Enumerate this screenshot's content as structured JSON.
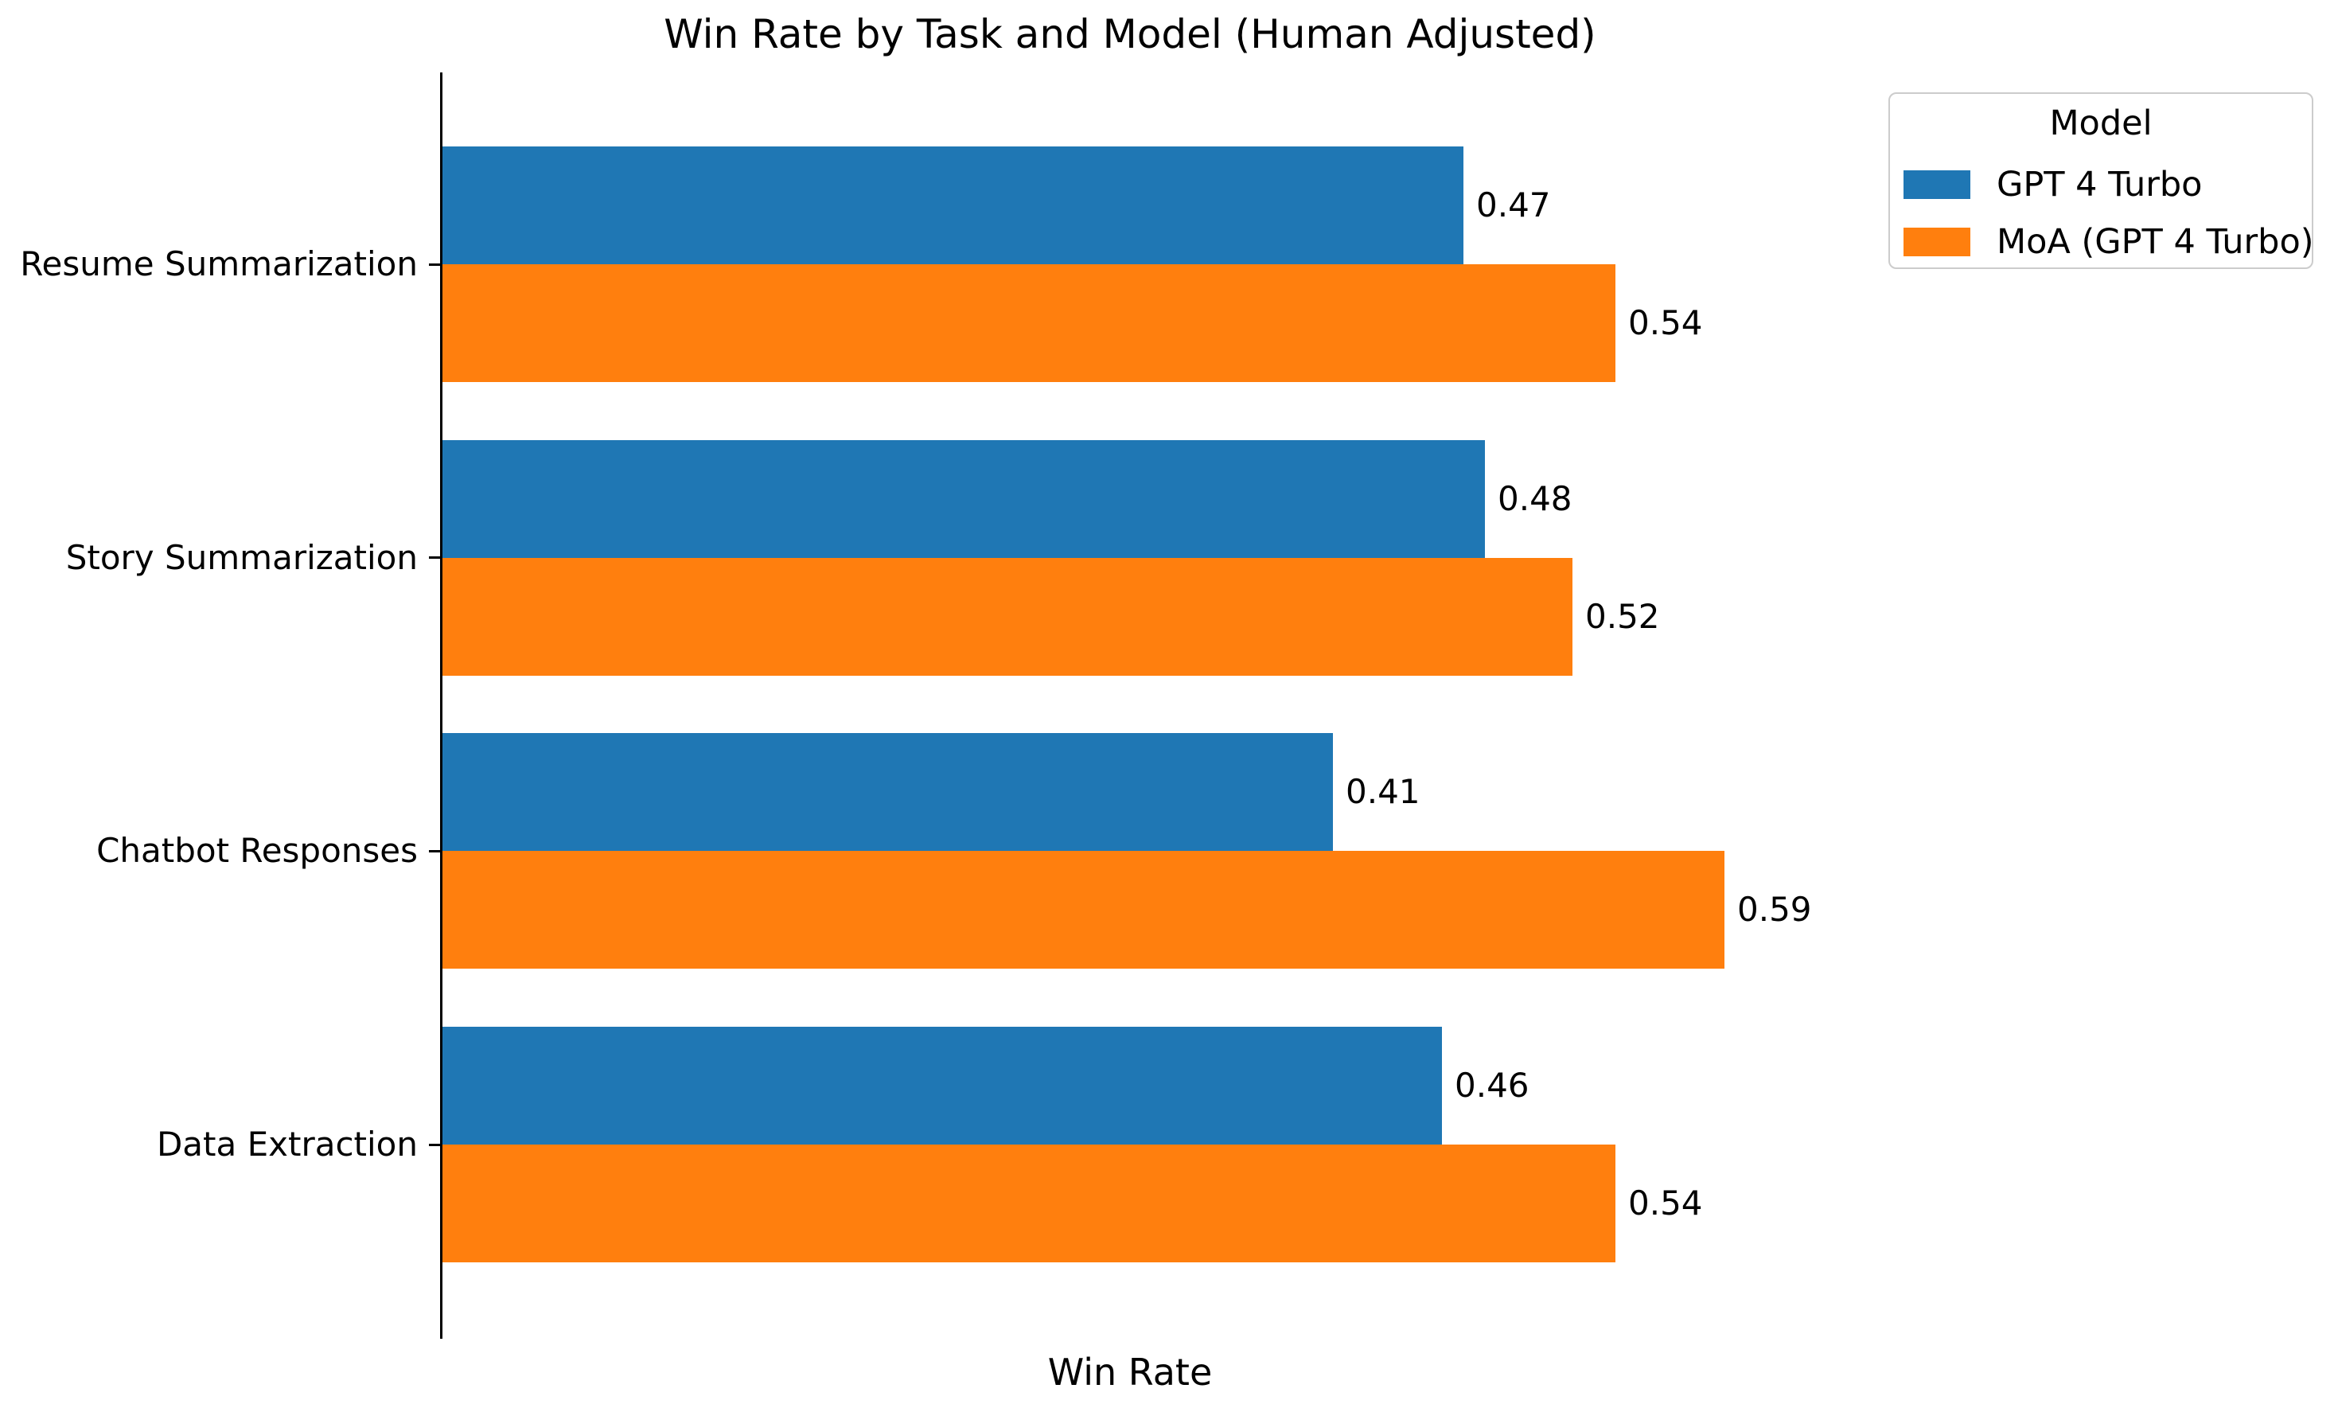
{
  "chart_data": {
    "type": "bar",
    "orientation": "horizontal",
    "title": "Win Rate by Task and Model (Human Adjusted)",
    "xlabel": "Win Rate",
    "ylabel": "",
    "categories": [
      "Resume Summarization",
      "Story Summarization",
      "Chatbot Responses",
      "Data Extraction"
    ],
    "series": [
      {
        "name": "GPT 4 Turbo",
        "color": "#1f77b4",
        "values": [
          0.47,
          0.48,
          0.41,
          0.46
        ],
        "labels": [
          "0.47",
          "0.48",
          "0.41",
          "0.46"
        ]
      },
      {
        "name": "MoA (GPT 4 Turbo)",
        "color": "#ff7f0e",
        "values": [
          0.54,
          0.52,
          0.59,
          0.54
        ],
        "labels": [
          "0.54",
          "0.52",
          "0.59",
          "0.54"
        ]
      }
    ],
    "xlim": [
      0,
      0.87
    ],
    "grid": false,
    "bar_value_annotations": true,
    "legend": {
      "title": "Model",
      "position": "upper right"
    },
    "style": {
      "axis_color": "#000000",
      "text_color": "#000000",
      "background_color": "#ffffff",
      "legend_border_color": "#cccccc"
    }
  }
}
